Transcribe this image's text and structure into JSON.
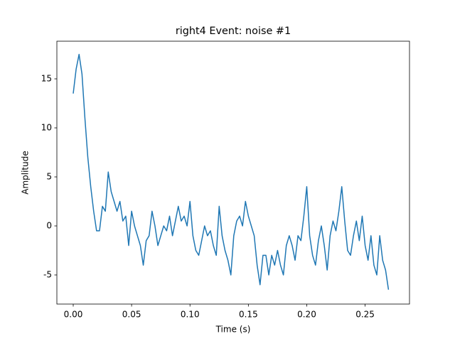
{
  "chart_data": {
    "type": "line",
    "title": "right4 Event: noise #1",
    "x_label": "Time (s)",
    "y_label": "Amplitude",
    "x": [
      0,
      0.0025,
      0.005,
      0.0075,
      0.01,
      0.0125,
      0.015,
      0.0175,
      0.02,
      0.0225,
      0.025,
      0.0275,
      0.03,
      0.0325,
      0.035,
      0.0375,
      0.04,
      0.0425,
      0.045,
      0.0475,
      0.05,
      0.0525,
      0.055,
      0.0575,
      0.06,
      0.0625,
      0.065,
      0.0675,
      0.07,
      0.0725,
      0.075,
      0.0775,
      0.08,
      0.0825,
      0.085,
      0.0875,
      0.09,
      0.0925,
      0.095,
      0.0975,
      0.1,
      0.1025,
      0.105,
      0.1075,
      0.11,
      0.1125,
      0.115,
      0.1175,
      0.12,
      0.1225,
      0.125,
      0.1275,
      0.13,
      0.1325,
      0.135,
      0.1375,
      0.14,
      0.1425,
      0.145,
      0.1475,
      0.15,
      0.1525,
      0.155,
      0.1575,
      0.16,
      0.1625,
      0.165,
      0.1675,
      0.17,
      0.1725,
      0.175,
      0.1775,
      0.18,
      0.1825,
      0.185,
      0.1875,
      0.19,
      0.1925,
      0.195,
      0.1975,
      0.2,
      0.2025,
      0.205,
      0.2075,
      0.21,
      0.2125,
      0.215,
      0.2175,
      0.22,
      0.2225,
      0.225,
      0.2275,
      0.23,
      0.2325,
      0.235,
      0.2375,
      0.24,
      0.2425,
      0.245,
      0.2475,
      0.25,
      0.2525,
      0.255,
      0.2575,
      0.26,
      0.2625,
      0.265,
      0.2675,
      0.27
    ],
    "series": [
      {
        "color": "#1f77b4",
        "values": [
          13.5,
          16,
          17.5,
          15.5,
          11,
          7,
          4,
          1.5,
          -0.5,
          -0.5,
          2,
          1.5,
          5.5,
          3.5,
          2.5,
          1.5,
          2.5,
          0.5,
          1,
          -2,
          1.5,
          0,
          -1,
          -2,
          -4,
          -1.5,
          -1,
          1.5,
          0,
          -2,
          -1,
          0,
          -0.5,
          1,
          -1,
          0.5,
          2,
          0.5,
          1,
          0,
          2.5,
          -1,
          -2.5,
          -3,
          -1.5,
          0,
          -1,
          -0.5,
          -2,
          -3,
          2,
          -1,
          -2.5,
          -3.5,
          -5,
          -1,
          0.5,
          1,
          0,
          2.5,
          1,
          0,
          -1,
          -4,
          -6,
          -3,
          -3,
          -5,
          -3,
          -4,
          -2.5,
          -4,
          -5,
          -2,
          -1,
          -2,
          -3.5,
          -1,
          -1.5,
          1,
          4,
          -1,
          -3,
          -4,
          -1.5,
          0,
          -2,
          -4.5,
          -1,
          0.5,
          -0.5,
          1.5,
          4,
          0.5,
          -2.5,
          -3,
          -1,
          0.5,
          -1.5,
          1,
          -2,
          -3.5,
          -1,
          -4,
          -5,
          -1,
          -3.5,
          -4.5,
          -6.5
        ]
      }
    ],
    "xlim": [
      -0.014,
      0.288
    ],
    "ylim": [
      -7.97,
      18.84
    ],
    "xticks": [
      {
        "value": 0,
        "label": "0.00"
      },
      {
        "value": 0.05,
        "label": "0.05"
      },
      {
        "value": 0.1,
        "label": "0.10"
      },
      {
        "value": 0.15,
        "label": "0.15"
      },
      {
        "value": 0.2,
        "label": "0.20"
      },
      {
        "value": 0.25,
        "label": "0.25"
      }
    ],
    "yticks": [
      -5,
      0,
      5,
      10,
      15
    ],
    "grid": false
  }
}
